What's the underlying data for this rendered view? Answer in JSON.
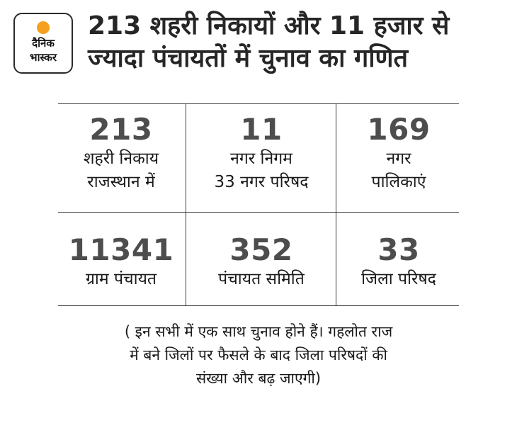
{
  "logo": {
    "line1": "दैनिक",
    "line2": "भास्कर",
    "dot_color": "#f5a01e"
  },
  "headline": {
    "line1": "213 शहरी निकायों और 11 हजार से",
    "line2": "ज्यादा पंचायतों में चुनाव का गणित"
  },
  "stats": [
    {
      "number": "213",
      "label_line1": "शहरी निकाय",
      "label_line2": "राजस्थान में"
    },
    {
      "number": "11",
      "label_line1": "नगर निगम",
      "label_line2": "33 नगर परिषद"
    },
    {
      "number": "169",
      "label_line1": "नगर",
      "label_line2": "पालिकाएं"
    },
    {
      "number": "11341",
      "label_line1": "ग्राम पंचायत",
      "label_line2": ""
    },
    {
      "number": "352",
      "label_line1": "पंचायत समिति",
      "label_line2": ""
    },
    {
      "number": "33",
      "label_line1": "जिला परिषद",
      "label_line2": ""
    }
  ],
  "footnote": {
    "line1": "( इन सभी में एक साथ चुनाव होने हैं। गहलोत राज",
    "line2": "में बने जिलों पर फैसले के बाद जिला परिषदों की",
    "line3": "संख्या और बढ़ जाएगी)"
  }
}
